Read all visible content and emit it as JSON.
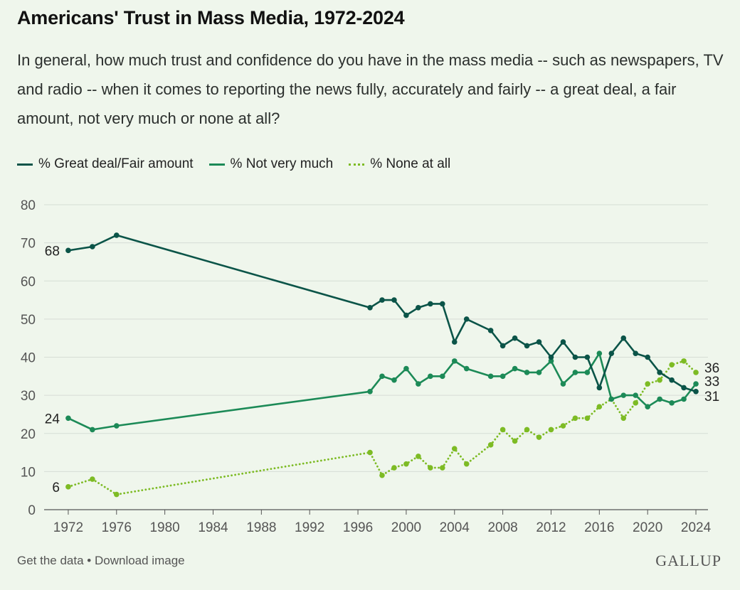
{
  "title": "Americans' Trust in Mass Media, 1972-2024",
  "subtitle": "In general, how much trust and confidence do you have in the mass media -- such as newspapers, TV and radio -- when it comes to reporting the news fully, accurately and fairly -- a great deal, a fair amount, not very much or none at all?",
  "footer": {
    "get_data": "Get the data",
    "separator": " • ",
    "download": "Download image"
  },
  "brand": "GALLUP",
  "colors": {
    "great_deal": "#0b5448",
    "not_very_much": "#1c8a57",
    "none": "#7dbb24",
    "grid": "#d6ddd5",
    "axis": "#555555"
  },
  "chart_data": {
    "type": "line",
    "title": "Americans' Trust in Mass Media, 1972-2024",
    "xlim": [
      1970,
      2025
    ],
    "ylim": [
      0,
      80
    ],
    "x_ticks": [
      1972,
      1976,
      1980,
      1984,
      1988,
      1992,
      1996,
      2000,
      2004,
      2008,
      2012,
      2016,
      2020,
      2024
    ],
    "y_ticks": [
      0,
      10,
      20,
      30,
      40,
      50,
      60,
      70,
      80
    ],
    "grid": true,
    "legend_position": "top",
    "series": [
      {
        "name": "% Great deal/Fair amount",
        "style": "solid",
        "color": "#0b5448",
        "x": [
          1972,
          1974,
          1976,
          1997,
          1998,
          1999,
          2000,
          2001,
          2002,
          2003,
          2004,
          2005,
          2007,
          2008,
          2009,
          2010,
          2011,
          2012,
          2013,
          2014,
          2015,
          2016,
          2017,
          2018,
          2019,
          2020,
          2021,
          2022,
          2023,
          2024
        ],
        "y": [
          68,
          69,
          72,
          53,
          55,
          55,
          51,
          53,
          54,
          54,
          44,
          50,
          47,
          43,
          45,
          43,
          44,
          40,
          44,
          40,
          40,
          32,
          41,
          45,
          41,
          40,
          36,
          34,
          32,
          31
        ]
      },
      {
        "name": "% Not very much",
        "style": "solid",
        "color": "#1c8a57",
        "x": [
          1972,
          1974,
          1976,
          1997,
          1998,
          1999,
          2000,
          2001,
          2002,
          2003,
          2004,
          2005,
          2007,
          2008,
          2009,
          2010,
          2011,
          2012,
          2013,
          2014,
          2015,
          2016,
          2017,
          2018,
          2019,
          2020,
          2021,
          2022,
          2023,
          2024
        ],
        "y": [
          24,
          21,
          22,
          31,
          35,
          34,
          37,
          33,
          35,
          35,
          39,
          37,
          35,
          35,
          37,
          36,
          36,
          39,
          33,
          36,
          36,
          41,
          29,
          30,
          30,
          27,
          29,
          28,
          29,
          33
        ]
      },
      {
        "name": "% None at all",
        "style": "dotted",
        "color": "#7dbb24",
        "x": [
          1972,
          1974,
          1976,
          1997,
          1998,
          1999,
          2000,
          2001,
          2002,
          2003,
          2004,
          2005,
          2007,
          2008,
          2009,
          2010,
          2011,
          2012,
          2013,
          2014,
          2015,
          2016,
          2017,
          2018,
          2019,
          2020,
          2021,
          2022,
          2023,
          2024
        ],
        "y": [
          6,
          8,
          4,
          15,
          9,
          11,
          12,
          14,
          11,
          11,
          16,
          12,
          17,
          21,
          18,
          21,
          19,
          21,
          22,
          24,
          24,
          27,
          29,
          24,
          28,
          33,
          34,
          38,
          39,
          36
        ]
      }
    ],
    "annotations": [
      {
        "text": "68",
        "x": 1972,
        "y": 68,
        "side": "left"
      },
      {
        "text": "24",
        "x": 1972,
        "y": 24,
        "side": "left"
      },
      {
        "text": "6",
        "x": 1972,
        "y": 6,
        "side": "left"
      },
      {
        "text": "36",
        "x": 2024,
        "y": 36,
        "side": "right"
      },
      {
        "text": "33",
        "x": 2024,
        "y": 33,
        "side": "right"
      },
      {
        "text": "31",
        "x": 2024,
        "y": 31,
        "side": "right"
      }
    ]
  }
}
